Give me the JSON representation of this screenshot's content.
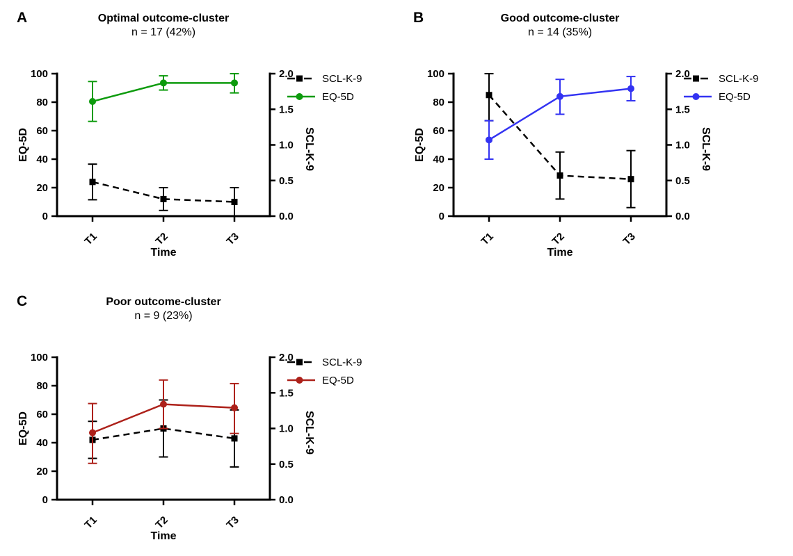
{
  "figure": {
    "background": "#ffffff",
    "series_order_note": "SCL-K-9 plotted on right axis, EQ-5D on left axis"
  },
  "chart_data": [
    {
      "type": "line",
      "panel_label": "A",
      "title": "Optimal outcome-cluster",
      "subtitle": "n = 17 (42%)",
      "x_categories": [
        "T1",
        "T2",
        "T3"
      ],
      "xlabel": "Time",
      "left_axis": {
        "label": "EQ-5D",
        "ticks": [
          "0",
          "20",
          "40",
          "60",
          "80",
          "100"
        ],
        "range": [
          0,
          100
        ]
      },
      "right_axis": {
        "label": "SCL-K-9",
        "ticks": [
          "0.0",
          "0.5",
          "1.0",
          "1.5",
          "2.0"
        ],
        "range": [
          0,
          2
        ]
      },
      "legend": [
        "SCL-K-9",
        "EQ-5D"
      ],
      "grid": false,
      "legend_position": "right-top",
      "series": [
        {
          "name": "SCL-K-9",
          "axis": "right",
          "color": "#000000",
          "line": "dashed",
          "marker": "square",
          "values": [
            0.48,
            0.24,
            0.2
          ],
          "err_low": [
            0.23,
            0.08,
            0.0
          ],
          "err_high": [
            0.73,
            0.4,
            0.4
          ]
        },
        {
          "name": "EQ-5D",
          "axis": "left",
          "color": "#0d9b0d",
          "line": "solid",
          "marker": "circle",
          "values": [
            80.5,
            93.5,
            93.5
          ],
          "err_low": [
            66.5,
            88.5,
            86.5
          ],
          "err_high": [
            94.5,
            98.5,
            100
          ]
        }
      ]
    },
    {
      "type": "line",
      "panel_label": "B",
      "title": "Good outcome-cluster",
      "subtitle": "n = 14 (35%)",
      "x_categories": [
        "T1",
        "T2",
        "T3"
      ],
      "xlabel": "Time",
      "left_axis": {
        "label": "EQ-5D",
        "ticks": [
          "0",
          "20",
          "40",
          "60",
          "80",
          "100"
        ],
        "range": [
          0,
          100
        ]
      },
      "right_axis": {
        "label": "SCL-K-9",
        "ticks": [
          "0.0",
          "0.5",
          "1.0",
          "1.5",
          "2.0"
        ],
        "range": [
          0,
          2
        ]
      },
      "legend": [
        "SCL-K-9",
        "EQ-5D"
      ],
      "grid": false,
      "legend_position": "right-top",
      "series": [
        {
          "name": "SCL-K-9",
          "axis": "right",
          "color": "#000000",
          "line": "dashed",
          "marker": "square",
          "values": [
            1.7,
            0.57,
            0.52
          ],
          "err_low": [
            1.34,
            0.24,
            0.12
          ],
          "err_high": [
            2.0,
            0.9,
            0.92
          ]
        },
        {
          "name": "EQ-5D",
          "axis": "left",
          "color": "#3333f2",
          "line": "solid",
          "marker": "circle",
          "values": [
            53.5,
            84.0,
            89.5
          ],
          "err_low": [
            40.0,
            71.5,
            81.0
          ],
          "err_high": [
            67.0,
            96.0,
            98.0
          ]
        }
      ]
    },
    {
      "type": "line",
      "panel_label": "C",
      "title": "Poor outcome-cluster",
      "subtitle": "n = 9 (23%)",
      "x_categories": [
        "T1",
        "T2",
        "T3"
      ],
      "xlabel": "Time",
      "left_axis": {
        "label": "EQ-5D",
        "ticks": [
          "0",
          "20",
          "40",
          "60",
          "80",
          "100"
        ],
        "range": [
          0,
          100
        ]
      },
      "right_axis": {
        "label": "SCL-K-9",
        "ticks": [
          "0.0",
          "0.5",
          "1.0",
          "1.5",
          "2.0"
        ],
        "range": [
          0,
          2
        ]
      },
      "legend": [
        "SCL-K-9",
        "EQ-5D"
      ],
      "grid": false,
      "legend_position": "right-top",
      "series": [
        {
          "name": "SCL-K-9",
          "axis": "right",
          "color": "#000000",
          "line": "dashed",
          "marker": "square",
          "values": [
            0.84,
            1.0,
            0.86
          ],
          "err_low": [
            0.58,
            0.6,
            0.46
          ],
          "err_high": [
            1.1,
            1.4,
            1.26
          ]
        },
        {
          "name": "EQ-5D",
          "axis": "left",
          "color": "#ad211a",
          "line": "solid",
          "marker": "circle",
          "values": [
            47.0,
            67.0,
            64.5
          ],
          "err_low": [
            25.5,
            50.0,
            46.5
          ],
          "err_high": [
            67.5,
            84.0,
            81.5
          ]
        }
      ]
    }
  ]
}
